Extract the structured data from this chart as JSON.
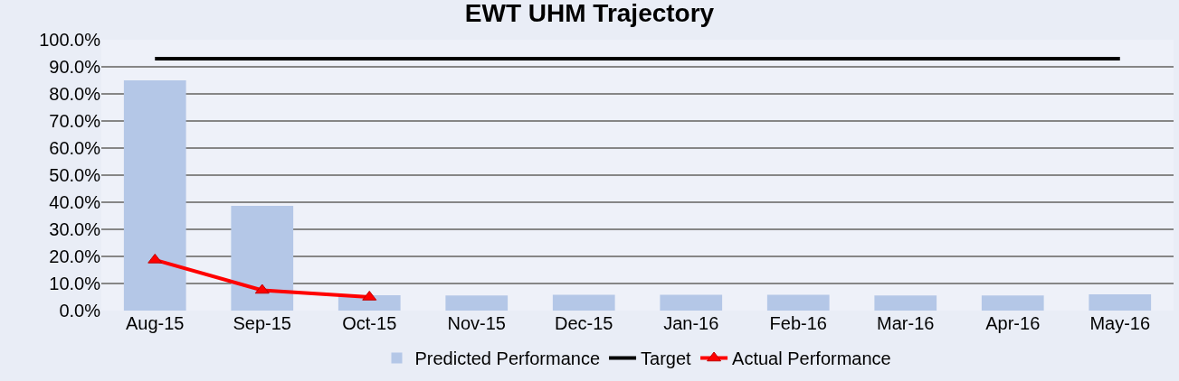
{
  "chart_data": {
    "type": "bar",
    "title": "EWT UHM Trajectory",
    "categories": [
      "Aug-15",
      "Sep-15",
      "Oct-15",
      "Nov-15",
      "Dec-15",
      "Jan-16",
      "Feb-16",
      "Mar-16",
      "Apr-16",
      "May-16"
    ],
    "series": [
      {
        "name": "Predicted Performance",
        "color": "#b4c7e7",
        "values": [
          85.0,
          38.7,
          5.7,
          5.6,
          5.8,
          5.8,
          5.8,
          5.6,
          5.6,
          6.0
        ]
      },
      {
        "name": "Target",
        "type": "line",
        "color": "#000000",
        "marker": "none",
        "values": [
          93.0,
          93.0,
          93.0,
          93.0,
          93.0,
          93.0,
          93.0,
          93.0,
          93.0,
          93.0
        ]
      },
      {
        "name": "Actual Performance",
        "type": "line",
        "color": "#ff0000",
        "marker": "triangle",
        "values": [
          18.7,
          7.5,
          5.0,
          null,
          null,
          null,
          null,
          null,
          null,
          null
        ]
      }
    ],
    "ylim": [
      0,
      100
    ],
    "yticks": [
      {
        "value": 0,
        "label": "0.0%"
      },
      {
        "value": 10,
        "label": "10.0%"
      },
      {
        "value": 20,
        "label": "20.0%"
      },
      {
        "value": 30,
        "label": "30.0%"
      },
      {
        "value": 40,
        "label": "40.0%"
      },
      {
        "value": 50,
        "label": "50.0%"
      },
      {
        "value": 60,
        "label": "60.0%"
      },
      {
        "value": 70,
        "label": "70.0%"
      },
      {
        "value": 80,
        "label": "80.0%"
      },
      {
        "value": 90,
        "label": "90.0%"
      },
      {
        "value": 100,
        "label": "100.0%"
      }
    ],
    "grid": "y",
    "legend": "bottom"
  }
}
